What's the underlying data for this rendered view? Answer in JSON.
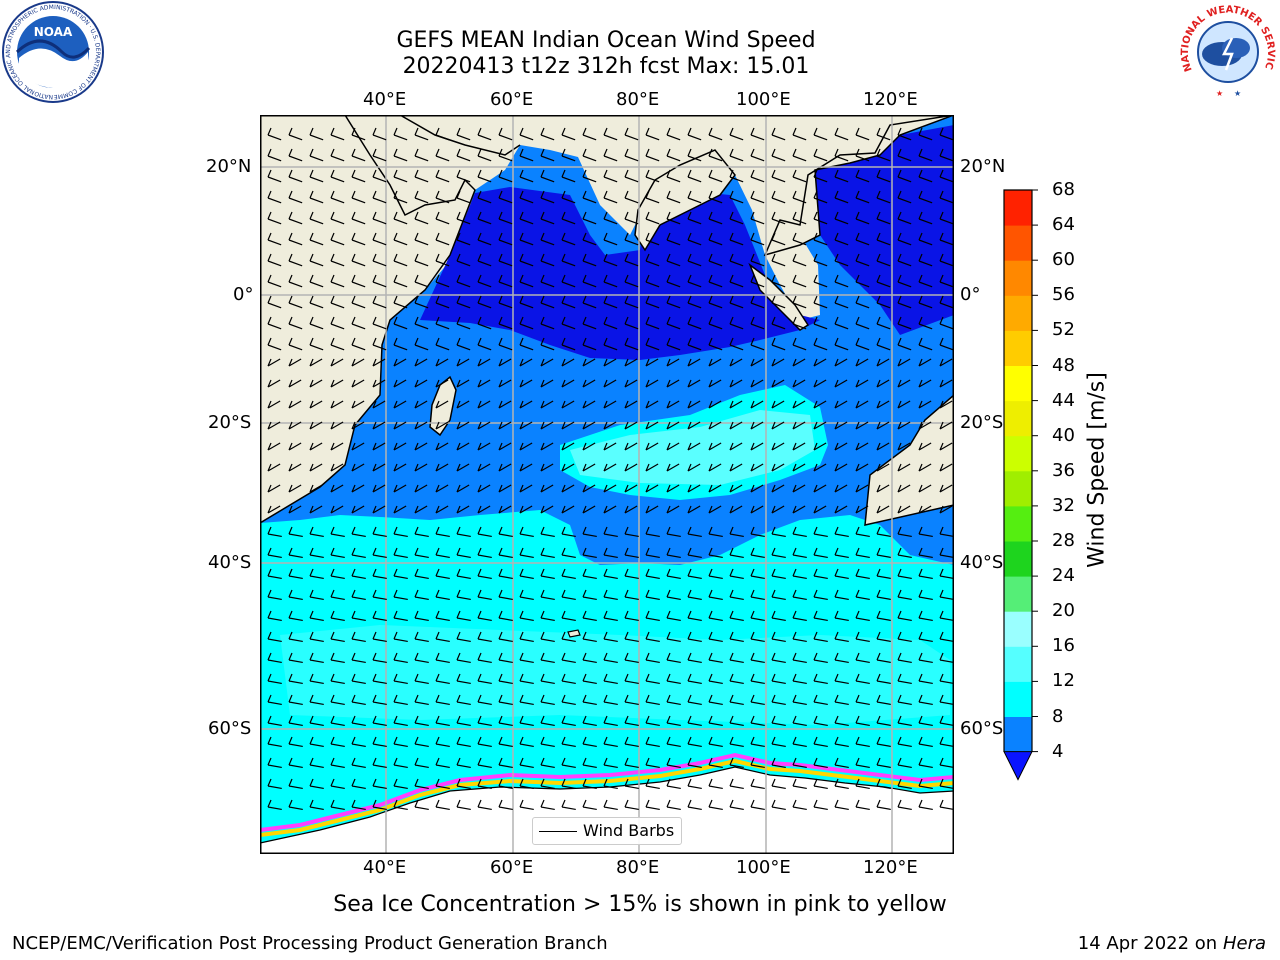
{
  "header": {
    "title_line1": "GEFS MEAN Indian Ocean Wind Speed",
    "title_line2": "20220413 t12z 312h fcst   Max: 15.01"
  },
  "map": {
    "lon_labels": [
      "40°E",
      "60°E",
      "80°E",
      "100°E",
      "120°E"
    ],
    "lat_labels": [
      "20°N",
      "0°",
      "20°S",
      "40°S",
      "60°S"
    ],
    "legend_label": "Wind Barbs",
    "colors": {
      "land": "#efeddc",
      "ocean_4_8": "#0a82ff",
      "ocean_0_4": "#0a14e6",
      "ocean_8_12": "#00ffff",
      "ocean_12_16": "#5affff",
      "ice_pink": "#ff40ff",
      "ice_yellow": "#ffd700",
      "antarctic": "#ffffff",
      "grid": "#b4b4b4"
    }
  },
  "colorbar": {
    "label": "Wind Speed [m/s]",
    "ticks": [
      "4",
      "8",
      "12",
      "16",
      "20",
      "24",
      "28",
      "32",
      "36",
      "40",
      "44",
      "48",
      "52",
      "56",
      "60",
      "64",
      "68"
    ],
    "bin_colors": [
      "#0a82ff",
      "#00ffff",
      "#55ffff",
      "#9affff",
      "#55ee77",
      "#1ed41e",
      "#55ee11",
      "#a0ee00",
      "#ccff00",
      "#eeee00",
      "#ffff00",
      "#ffcc00",
      "#ffaa00",
      "#ff8800",
      "#ff5500",
      "#ff2200"
    ],
    "under_color": "#0a14ff"
  },
  "caption": "Sea Ice Concentration > 15% is shown in pink to yellow",
  "footer": {
    "left": "NCEP/EMC/Verification Post Processing Product Generation Branch",
    "right_date": "14 Apr 2022 on ",
    "right_machine": "Hera"
  },
  "logos": {
    "noaa_text": "NOAA",
    "noaa_ring": "NATIONAL OCEANIC AND ATMOSPHERIC ADMINISTRATION · U.S. DEPARTMENT OF COMMERCE",
    "nws_ring": "NATIONAL WEATHER SERVICE"
  }
}
